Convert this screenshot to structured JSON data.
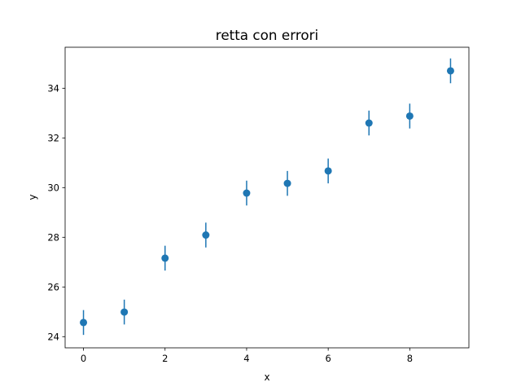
{
  "chart_data": {
    "type": "scatter",
    "title": "retta con errori",
    "xlabel": "x",
    "ylabel": "y",
    "xlim": [
      -0.45,
      9.45
    ],
    "ylim": [
      23.55,
      35.65
    ],
    "xticks": [
      0,
      2,
      4,
      6,
      8
    ],
    "yticks": [
      24,
      26,
      28,
      30,
      32,
      34
    ],
    "grid": false,
    "series": [
      {
        "color": "#1f77b4",
        "x": [
          0,
          1,
          2,
          3,
          4,
          5,
          6,
          7,
          8,
          9
        ],
        "y": [
          24.57,
          24.99,
          27.16,
          28.09,
          29.78,
          30.17,
          30.67,
          32.6,
          32.88,
          34.7
        ],
        "yerr": [
          0.5,
          0.5,
          0.5,
          0.5,
          0.5,
          0.5,
          0.5,
          0.5,
          0.5,
          0.5
        ]
      }
    ]
  }
}
